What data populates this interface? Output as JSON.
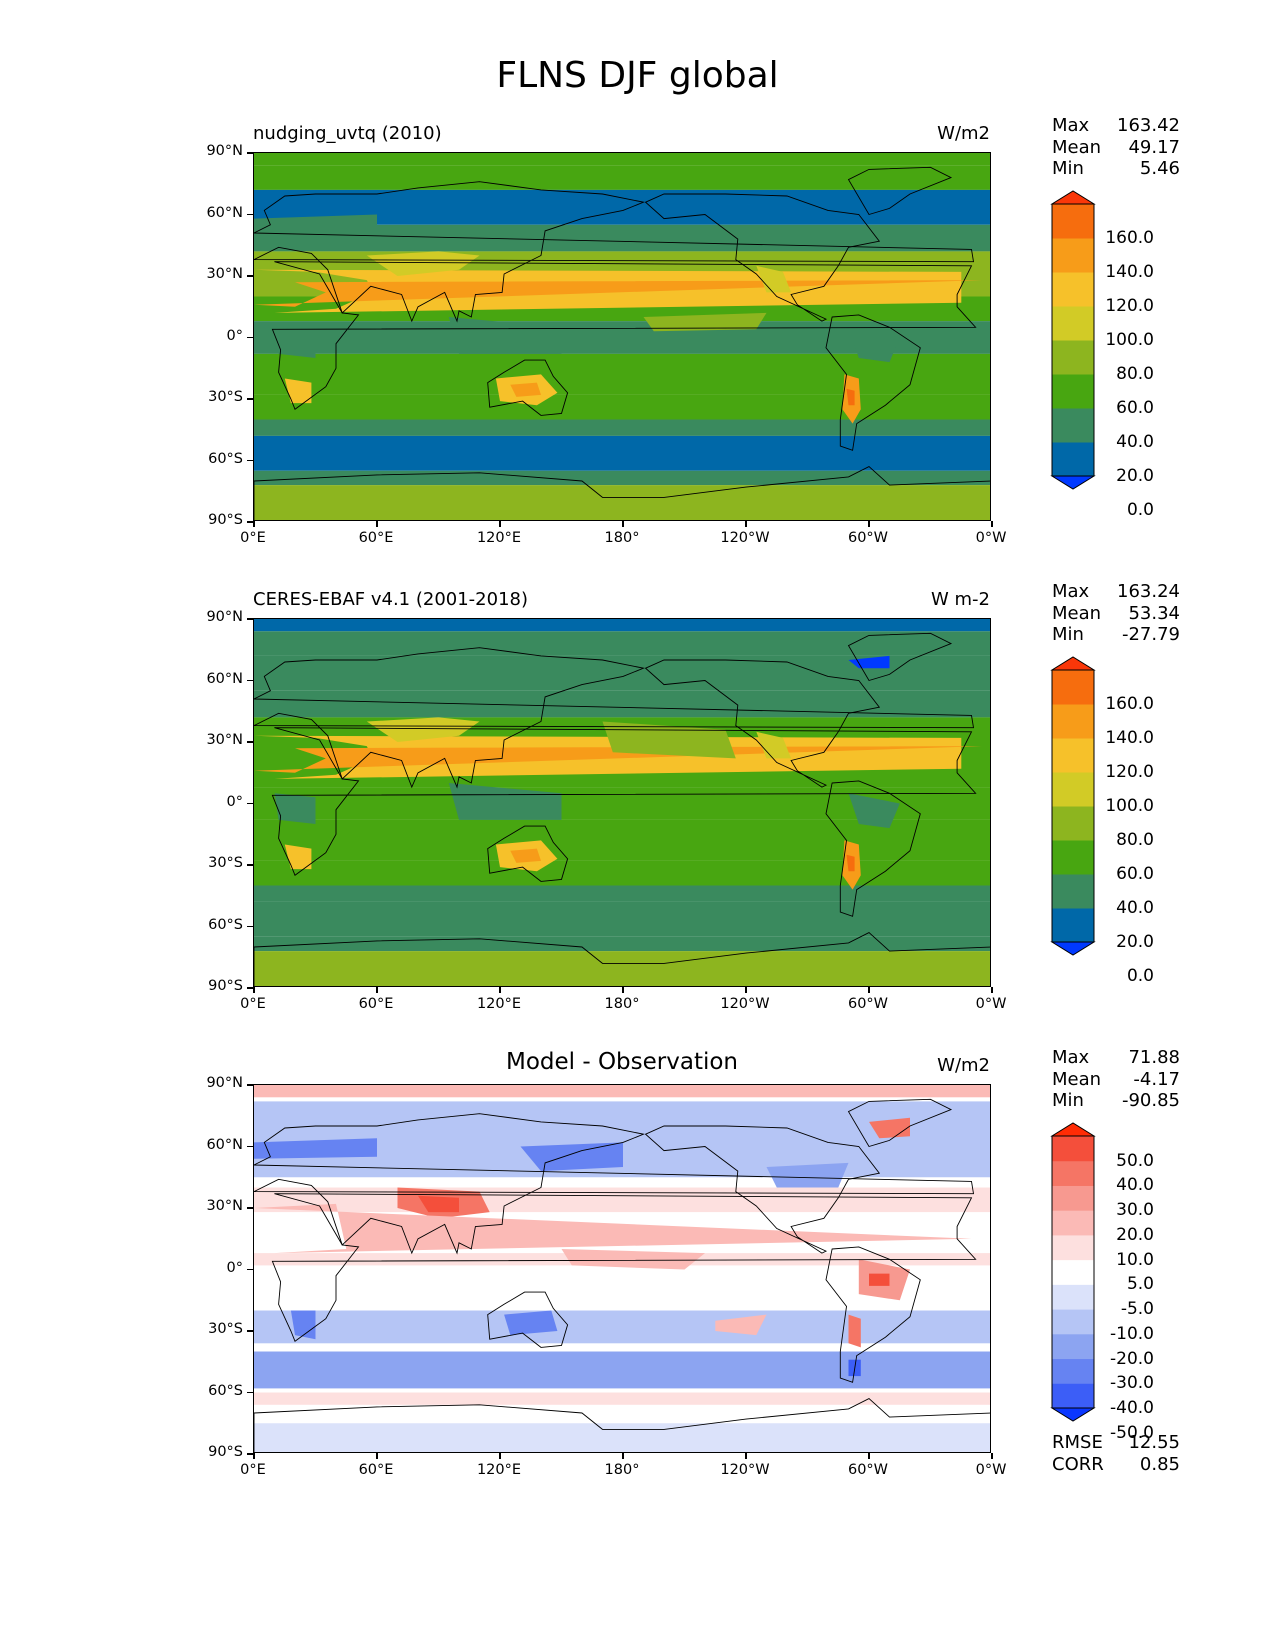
{
  "figure": {
    "title": "FLNS DJF global"
  },
  "x_ticks": [
    "0°E",
    "60°E",
    "120°E",
    "180°",
    "120°W",
    "60°W",
    "0°W"
  ],
  "y_ticks": [
    "90°N",
    "60°N",
    "30°N",
    "0°",
    "30°S",
    "60°S",
    "90°S"
  ],
  "panels": [
    {
      "left_title": "nudging_uvtq (2010)",
      "center_title": "",
      "units": "W/m2",
      "stats": [
        {
          "label": "Max",
          "value": "163.42"
        },
        {
          "label": "Mean",
          "value": "49.17"
        },
        {
          "label": "Min",
          "value": "5.46"
        }
      ],
      "colorbar_labels": [
        "160.0",
        "140.0",
        "120.0",
        "100.0",
        "80.0",
        "60.0",
        "40.0",
        "20.0",
        "0.0"
      ]
    },
    {
      "left_title": "CERES-EBAF v4.1 (2001-2018)",
      "center_title": "",
      "units": "W m-2",
      "stats": [
        {
          "label": "Max",
          "value": "163.24"
        },
        {
          "label": "Mean",
          "value": "53.34"
        },
        {
          "label": "Min",
          "value": "-27.79"
        }
      ],
      "colorbar_labels": [
        "160.0",
        "140.0",
        "120.0",
        "100.0",
        "80.0",
        "60.0",
        "40.0",
        "20.0",
        "0.0"
      ]
    },
    {
      "left_title": "",
      "center_title": "Model - Observation",
      "units": "W/m2",
      "stats": [
        {
          "label": "Max",
          "value": "71.88"
        },
        {
          "label": "Mean",
          "value": "-4.17"
        },
        {
          "label": "Min",
          "value": "-90.85"
        }
      ],
      "colorbar_labels": [
        "50.0",
        "40.0",
        "30.0",
        "20.0",
        "10.0",
        "5.0",
        "-5.0",
        "-10.0",
        "-20.0",
        "-30.0",
        "-40.0",
        "-50.0"
      ],
      "extra_stats": [
        {
          "label": "RMSE",
          "value": "12.55"
        },
        {
          "label": "CORR",
          "value": "0.85"
        }
      ]
    }
  ],
  "colors": {
    "seq": [
      "#0039ff",
      "#0068a8",
      "#3a8a5e",
      "#48a611",
      "#8db51f",
      "#d2cb26",
      "#f6c12a",
      "#f79c19",
      "#f66d0e",
      "#fa3709"
    ],
    "div": [
      "#0a37ff",
      "#3c5ef7",
      "#6683f2",
      "#8ca4f1",
      "#b5c5f5",
      "#dbe2fa",
      "#ffffff",
      "#fde0df",
      "#fbbab6",
      "#f79990",
      "#f57565",
      "#f44f3b",
      "#ff2c05"
    ]
  }
}
